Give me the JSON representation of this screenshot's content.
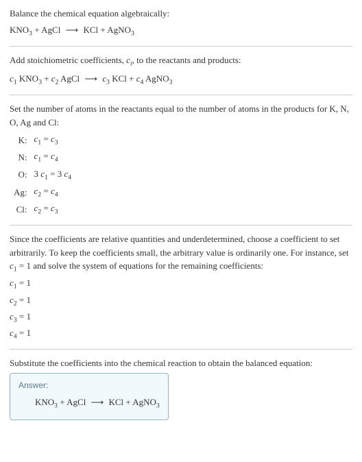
{
  "intro": {
    "line1": "Balance the chemical equation algebraically:",
    "equation_left1": "KNO",
    "equation_left1_sub": "3",
    "plus1": " + AgCl ",
    "arrow": "⟶",
    "equation_right1": " KCl + AgNO",
    "equation_right1_sub": "3"
  },
  "stoich": {
    "text1": "Add stoichiometric coefficients, ",
    "ci": "c",
    "ci_sub": "i",
    "text2": ", to the reactants and products:",
    "c1": "c",
    "c1_sub": "1",
    "sp1": " KNO",
    "sp1_sub": "3",
    "plus": " + ",
    "c2": "c",
    "c2_sub": "2",
    "sp2": " AgCl ",
    "arrow": "⟶",
    "sp3": " ",
    "c3": "c",
    "c3_sub": "3",
    "sp4": " KCl + ",
    "c4": "c",
    "c4_sub": "4",
    "sp5": " AgNO",
    "sp5_sub": "3"
  },
  "atoms": {
    "intro": "Set the number of atoms in the reactants equal to the number of atoms in the products for K, N, O, Ag and Cl:",
    "rows": [
      {
        "el": "K:",
        "lhs_c": "c",
        "lhs_s": "1",
        "eq": " = ",
        "rhs_c": "c",
        "rhs_s": "3",
        "pre": "",
        "mid": ""
      },
      {
        "el": "N:",
        "lhs_c": "c",
        "lhs_s": "1",
        "eq": " = ",
        "rhs_c": "c",
        "rhs_s": "4",
        "pre": "",
        "mid": ""
      },
      {
        "el": "O:",
        "lhs_c": "c",
        "lhs_s": "1",
        "eq": " = 3 ",
        "rhs_c": "c",
        "rhs_s": "4",
        "pre": "3 ",
        "mid": ""
      },
      {
        "el": "Ag:",
        "lhs_c": "c",
        "lhs_s": "2",
        "eq": " = ",
        "rhs_c": "c",
        "rhs_s": "4",
        "pre": "",
        "mid": ""
      },
      {
        "el": "Cl:",
        "lhs_c": "c",
        "lhs_s": "2",
        "eq": " = ",
        "rhs_c": "c",
        "rhs_s": "3",
        "pre": "",
        "mid": ""
      }
    ]
  },
  "solve": {
    "text1": "Since the coefficients are relative quantities and underdetermined, choose a coefficient to set arbitrarily. To keep the coefficients small, the arbitrary value is ordinarily one. For instance, set ",
    "c1": "c",
    "c1_sub": "1",
    "text2": " = 1 and solve the system of equations for the remaining coefficients:",
    "coeffs": [
      {
        "c": "c",
        "s": "1",
        "v": " = 1"
      },
      {
        "c": "c",
        "s": "2",
        "v": " = 1"
      },
      {
        "c": "c",
        "s": "3",
        "v": " = 1"
      },
      {
        "c": "c",
        "s": "4",
        "v": " = 1"
      }
    ]
  },
  "subst": {
    "text": "Substitute the coefficients into the chemical reaction to obtain the balanced equation:"
  },
  "answer": {
    "label": "Answer:",
    "left1": "KNO",
    "left1_sub": "3",
    "plus": " + AgCl ",
    "arrow": "⟶",
    "right1": " KCl + AgNO",
    "right1_sub": "3"
  }
}
